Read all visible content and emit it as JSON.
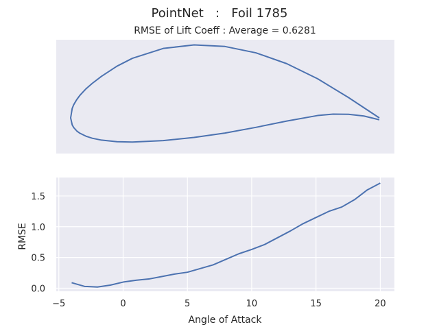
{
  "figure": {
    "title": "PointNet   :   Foil 1785",
    "background": "#ffffff"
  },
  "chart_data": [
    {
      "type": "line",
      "title": "RMSE of Lift Coeff : Average = 0.6281",
      "xlabel": "",
      "ylabel": "",
      "axes_visible": false,
      "grid": false,
      "background": "#eaeaf2",
      "line_color": "#4c72b0",
      "x": [
        1.0,
        0.9,
        0.8,
        0.7,
        0.6,
        0.5,
        0.4,
        0.3,
        0.2,
        0.15,
        0.1,
        0.07,
        0.05,
        0.03,
        0.02,
        0.01,
        0.005,
        0.0,
        0.005,
        0.01,
        0.02,
        0.03,
        0.05,
        0.07,
        0.1,
        0.15,
        0.2,
        0.3,
        0.4,
        0.5,
        0.6,
        0.7,
        0.8,
        0.85,
        0.9,
        0.95,
        1.0
      ],
      "y": [
        0.0,
        0.0647,
        0.1241,
        0.172,
        0.2064,
        0.2265,
        0.2316,
        0.2203,
        0.189,
        0.164,
        0.132,
        0.1095,
        0.0925,
        0.0715,
        0.0585,
        0.042,
        0.03,
        0.0,
        -0.0223,
        -0.0307,
        -0.0416,
        -0.0487,
        -0.0582,
        -0.0645,
        -0.0705,
        -0.0755,
        -0.0767,
        -0.072,
        -0.062,
        -0.048,
        -0.03,
        -0.01,
        0.0075,
        0.012,
        0.0115,
        0.006,
        -0.006
      ]
    },
    {
      "type": "line",
      "title": "",
      "xlabel": "Angle of Attack",
      "ylabel": "RMSE",
      "grid": true,
      "background": "#eaeaf2",
      "line_color": "#4c72b0",
      "xlim": [
        -5.2,
        21.1
      ],
      "ylim": [
        -0.05,
        1.8
      ],
      "xticks": [
        -5,
        0,
        5,
        10,
        15,
        20
      ],
      "yticks": [
        0.0,
        0.5,
        1.0,
        1.5
      ],
      "xticklabels": [
        "−5",
        "0",
        "5",
        "10",
        "15",
        "20"
      ],
      "yticklabels": [
        "0.0",
        "0.5",
        "1.0",
        "1.5"
      ],
      "series": [
        {
          "x": [
            -4,
            -3,
            -2,
            -1,
            0,
            1,
            2,
            3,
            4,
            5,
            6,
            7,
            8,
            9,
            10,
            11,
            12,
            13,
            14,
            15,
            16,
            17,
            18,
            19,
            20
          ],
          "values": [
            0.09,
            0.03,
            0.02,
            0.05,
            0.1,
            0.13,
            0.15,
            0.19,
            0.23,
            0.26,
            0.32,
            0.38,
            0.47,
            0.56,
            0.63,
            0.71,
            0.82,
            0.93,
            1.05,
            1.15,
            1.25,
            1.32,
            1.44,
            1.6,
            1.71
          ]
        }
      ]
    }
  ]
}
